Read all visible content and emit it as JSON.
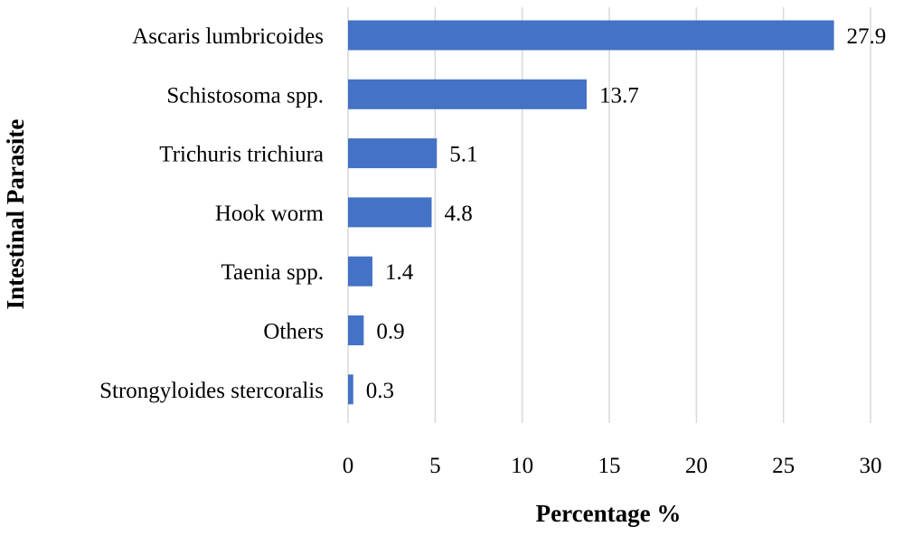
{
  "chart_data": {
    "type": "bar",
    "orientation": "horizontal",
    "categories": [
      "Ascaris lumbricoides",
      "Schistosoma spp.",
      "Trichuris trichiura",
      "Hook worm",
      "Taenia spp.",
      "Others",
      "Strongyloides stercoralis"
    ],
    "values": [
      27.9,
      13.7,
      5.1,
      4.8,
      1.4,
      0.9,
      0.3
    ],
    "data_labels": [
      "27.9",
      "13.7",
      "5.1",
      "4.8",
      "1.4",
      "0.9",
      "0.3"
    ],
    "xlabel": "Percentage %",
    "ylabel": "Intestinal Parasite",
    "xlim": [
      0,
      30
    ],
    "xticks": [
      0,
      5,
      10,
      15,
      20,
      25,
      30
    ],
    "xtick_labels": [
      "0",
      "5",
      "10",
      "15",
      "20",
      "25",
      "30"
    ],
    "grid": "vertical",
    "legend": "none",
    "bar_color": "#4472c4"
  }
}
